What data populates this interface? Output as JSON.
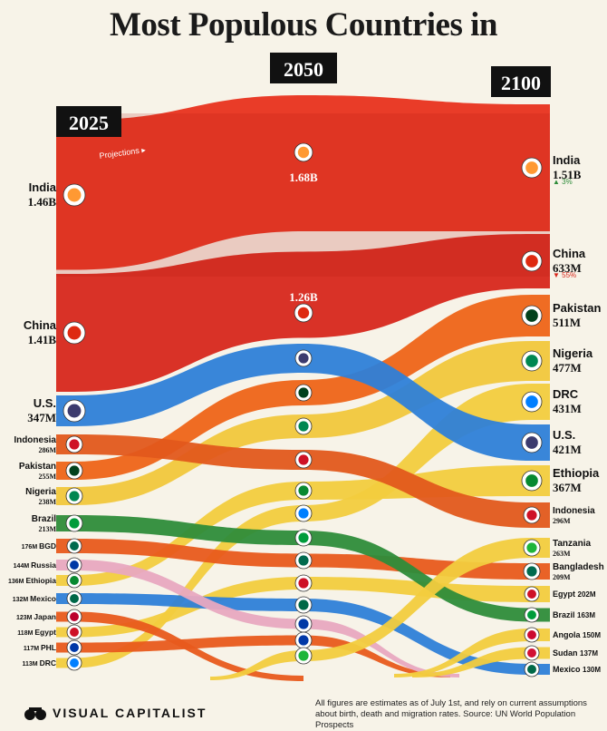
{
  "title": "Most Populous Countries in",
  "years": [
    "2025",
    "2050",
    "2100"
  ],
  "projections_label": "Projections ▸",
  "footer": {
    "brand": "VISUAL CAPITALIST",
    "note": "All figures are estimates as of July 1st, and rely on current assumptions about birth, death and migration rates. Source: UN World Population Prospects"
  },
  "colors": {
    "india": "#e8321d",
    "china": "#d7271c",
    "us": "#2e7fd8",
    "indonesia": "#e2581c",
    "pakistan": "#ee6418",
    "nigeria": "#f1c73c",
    "brazil": "#2e8c3a",
    "bangladesh": "#e85a1c",
    "russia": "#e8a8c0",
    "ethiopia": "#f2cc3e",
    "mexico": "#2e7fd8",
    "japan": "#e85a1c",
    "egypt": "#f2cc3e",
    "philippines": "#e85a1c",
    "drc": "#f2cc3e",
    "tanzania": "#f2cc3e",
    "angola": "#f2cc3e",
    "sudan": "#f2cc3e"
  },
  "chart_data": {
    "type": "area",
    "title": "Most Populous Countries in",
    "x": [
      "2025",
      "2050",
      "2100"
    ],
    "series": [
      {
        "name": "India",
        "key": "india",
        "values": [
          1460,
          1680,
          1510
        ],
        "labels": [
          "1.46B",
          "1.68B",
          "1.51B"
        ],
        "icon": "india-flag-icon",
        "change": "▲ 3%"
      },
      {
        "name": "China",
        "key": "china",
        "values": [
          1410,
          1260,
          633
        ],
        "labels": [
          "1.41B",
          "1.26B",
          "633M"
        ],
        "icon": "china-flag-icon",
        "change": "▼ 55%"
      },
      {
        "name": "U.S.",
        "key": "us",
        "values": [
          347,
          null,
          421
        ],
        "labels": [
          "347M",
          "",
          "421M"
        ],
        "icon": "us-flag-icon"
      },
      {
        "name": "Indonesia",
        "key": "indonesia",
        "values": [
          286,
          null,
          296
        ],
        "labels": [
          "286M",
          "",
          "296M"
        ],
        "icon": "indonesia-flag-icon"
      },
      {
        "name": "Pakistan",
        "key": "pakistan",
        "values": [
          255,
          null,
          511
        ],
        "labels": [
          "255M",
          "",
          "511M"
        ],
        "icon": "pakistan-flag-icon"
      },
      {
        "name": "Nigeria",
        "key": "nigeria",
        "values": [
          238,
          null,
          477
        ],
        "labels": [
          "238M",
          "",
          "477M"
        ],
        "icon": "nigeria-flag-icon"
      },
      {
        "name": "Brazil",
        "key": "brazil",
        "values": [
          213,
          null,
          163
        ],
        "labels": [
          "213M",
          "",
          "163M"
        ],
        "icon": "brazil-flag-icon"
      },
      {
        "name": "BGD",
        "name_2100": "Bangladesh",
        "key": "bangladesh",
        "values": [
          176,
          null,
          209
        ],
        "labels": [
          "176M",
          "",
          "209M"
        ],
        "icon": "bangladesh-flag-icon"
      },
      {
        "name": "Russia",
        "key": "russia",
        "values": [
          144,
          null,
          null
        ],
        "labels": [
          "144M",
          "",
          ""
        ],
        "icon": "russia-flag-icon"
      },
      {
        "name": "Ethiopia",
        "key": "ethiopia",
        "values": [
          136,
          null,
          367
        ],
        "labels": [
          "136M",
          "",
          "367M"
        ],
        "icon": "ethiopia-flag-icon"
      },
      {
        "name": "Mexico",
        "key": "mexico",
        "values": [
          132,
          null,
          130
        ],
        "labels": [
          "132M",
          "",
          "130M"
        ],
        "icon": "mexico-flag-icon"
      },
      {
        "name": "Japan",
        "key": "japan",
        "values": [
          123,
          null,
          null
        ],
        "labels": [
          "123M",
          "",
          ""
        ],
        "icon": "japan-flag-icon"
      },
      {
        "name": "Egypt",
        "key": "egypt",
        "values": [
          118,
          null,
          202
        ],
        "labels": [
          "118M",
          "",
          "202M"
        ],
        "icon": "egypt-flag-icon"
      },
      {
        "name": "PHL",
        "key": "philippines",
        "values": [
          117,
          null,
          null
        ],
        "labels": [
          "117M",
          "",
          ""
        ],
        "icon": "philippines-flag-icon"
      },
      {
        "name": "DRC",
        "key": "drc",
        "values": [
          113,
          null,
          431
        ],
        "labels": [
          "113M",
          "",
          "431M"
        ],
        "icon": "drc-flag-icon"
      },
      {
        "name": "Tanzania",
        "key": "tanzania",
        "values": [
          null,
          null,
          263
        ],
        "labels": [
          "",
          "",
          "263M"
        ],
        "icon": "tanzania-flag-icon"
      },
      {
        "name": "Angola",
        "key": "angola",
        "values": [
          null,
          null,
          150
        ],
        "labels": [
          "",
          "",
          "150M"
        ],
        "icon": "angola-flag-icon"
      },
      {
        "name": "Sudan",
        "key": "sudan",
        "values": [
          null,
          null,
          137
        ],
        "labels": [
          "",
          "",
          "137M"
        ],
        "icon": "sudan-flag-icon"
      }
    ],
    "order_2050": [
      "india",
      "china",
      "us",
      "pakistan",
      "nigeria",
      "indonesia",
      "ethiopia",
      "drc",
      "brazil",
      "bangladesh",
      "egypt",
      "mexico",
      "russia",
      "philippines",
      "tanzania"
    ]
  }
}
